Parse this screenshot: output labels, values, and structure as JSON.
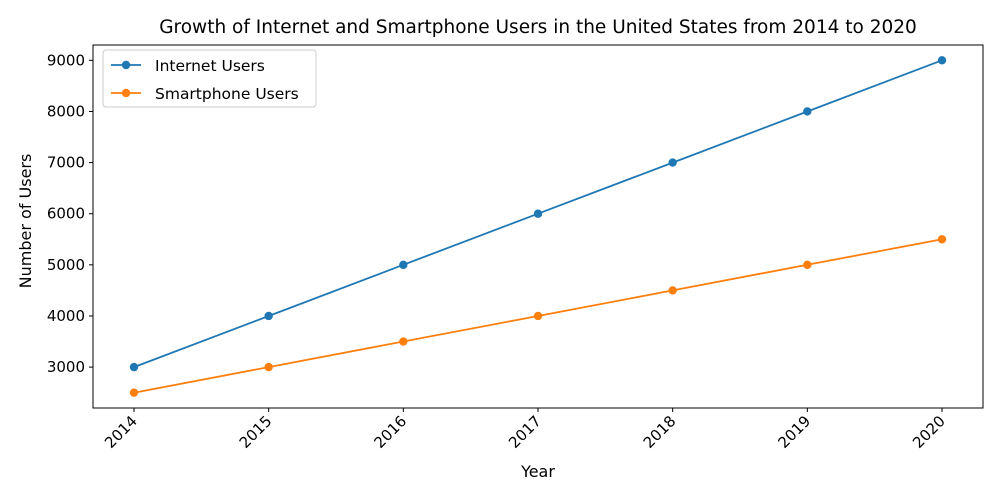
{
  "chart_data": {
    "type": "line",
    "title": "Growth of Internet and Smartphone Users in the United States from 2014 to 2020",
    "xlabel": "Year",
    "ylabel": "Number of Users",
    "x": [
      "2014",
      "2015",
      "2016",
      "2017",
      "2018",
      "2019",
      "2020"
    ],
    "series": [
      {
        "name": "Internet Users",
        "color": "#1f77b4",
        "values": [
          3000,
          4000,
          5000,
          6000,
          7000,
          8000,
          9000
        ]
      },
      {
        "name": "Smartphone Users",
        "color": "#ff7f0e",
        "values": [
          2500,
          3000,
          3500,
          4000,
          4500,
          5000,
          5500
        ]
      }
    ],
    "yticks": [
      3000,
      4000,
      5000,
      6000,
      7000,
      8000,
      9000
    ],
    "ylim": [
      2200,
      9300
    ],
    "grid": false,
    "legend_position": "top-left"
  }
}
